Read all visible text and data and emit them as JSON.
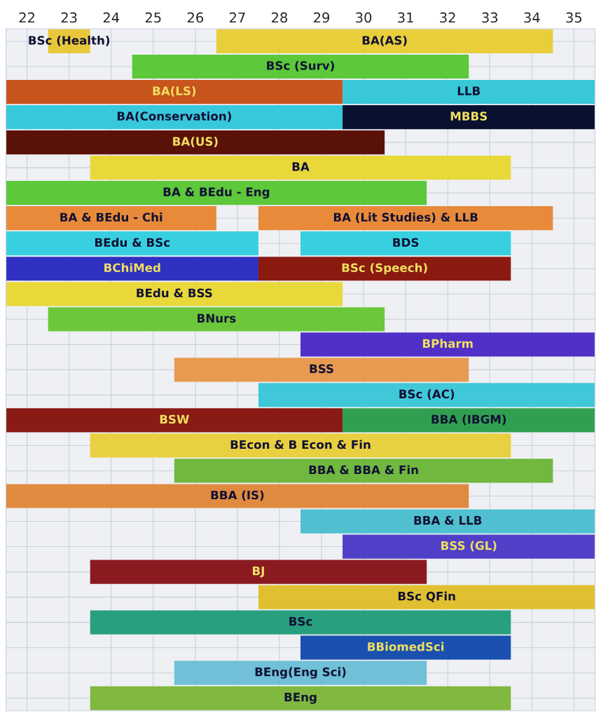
{
  "chart_data": {
    "type": "bar",
    "orientation": "horizontal",
    "xlim": [
      21.5,
      35.5
    ],
    "xticks": [
      22,
      23,
      24,
      25,
      26,
      27,
      28,
      29,
      30,
      31,
      32,
      33,
      34,
      35
    ],
    "grid": true,
    "tick_labels": "x",
    "categories": [
      null,
      null,
      null,
      null,
      null,
      null,
      null,
      null,
      null,
      null,
      null,
      null,
      null,
      null,
      null,
      null,
      null,
      null,
      null,
      null,
      null,
      null,
      null,
      null,
      null,
      null,
      null
    ],
    "series": [
      {
        "base": [
          22.5,
          24.5,
          21.5,
          21.5,
          21.5,
          23.5,
          21.5,
          21.5,
          21.5,
          21.5,
          21.5,
          22.5,
          28.5,
          25.5,
          27.5,
          21.5,
          23.5,
          25.5,
          21.5,
          28.5,
          29.5,
          23.5,
          27.5,
          23.5,
          28.5,
          25.5,
          23.5
        ],
        "values": [
          1,
          8,
          8,
          8,
          9,
          10,
          10,
          5,
          6,
          6,
          8,
          8,
          7,
          7,
          8,
          8,
          10,
          9,
          11,
          7,
          6,
          8,
          8,
          10,
          5,
          6,
          10
        ],
        "colors": [
          "#e8c83a",
          "#5cc83a",
          "#c8541e",
          "#38c8dc",
          "#5a1208",
          "#e8d83a",
          "#5cc83a",
          "#e88a3a",
          "#38d0e0",
          "#3030c0",
          "#e8d83a",
          "#6cc83a",
          "#5030c8",
          "#e89a50",
          "#40c8d8",
          "#8a1a14",
          "#e8d040",
          "#70b840",
          "#e08a40",
          "#50c0d0",
          "#5040c8",
          "#8a1a20",
          "#e0c030",
          "#28a080",
          "#1a50b0",
          "#70c0d8",
          "#80b840"
        ],
        "value_labels": [
          "BSc (Health)",
          "BSc (Surv)",
          "BA(LS)",
          "BA(Conservation)",
          "BA(US)",
          "BA",
          "BA & BEdu - Eng",
          "BA & BEdu - Chi",
          "BEdu & BSc",
          "BChiMed",
          "BEdu & BSS",
          "BNurs",
          "BPharm",
          "BSS",
          "BSc (AC)",
          "BSW",
          "BEcon & B Econ & Fin",
          "BBA & BBA & Fin",
          "BBA (IS)",
          "BBA & LLB",
          "BSS (GL)",
          "BJ",
          "BSc QFin",
          "BSc",
          "BBiomedSci",
          "BEng(Eng Sci)",
          "BEng"
        ]
      },
      {
        "base": [
          26.5,
          null,
          29.5,
          29.5,
          null,
          null,
          null,
          27.5,
          28.5,
          27.5,
          null,
          null,
          null,
          null,
          null,
          29.5,
          null,
          null,
          null,
          null,
          null,
          null,
          null,
          null,
          null,
          null,
          null
        ],
        "values": [
          8,
          null,
          6,
          6,
          null,
          null,
          null,
          7,
          5,
          6,
          null,
          null,
          null,
          null,
          null,
          6,
          null,
          null,
          null,
          null,
          null,
          null,
          null,
          null,
          null,
          null,
          null
        ],
        "colors": [
          "#e8cf3a",
          null,
          "#38c8d8",
          "#0a1030",
          null,
          null,
          null,
          "#e88a3a",
          "#38d0e0",
          "#8a1a10",
          null,
          null,
          null,
          null,
          null,
          "#30a050",
          null,
          null,
          null,
          null,
          null,
          null,
          null,
          null,
          null,
          null,
          null
        ],
        "value_labels": [
          "BA(AS)",
          null,
          "LLB",
          "MBBS",
          null,
          null,
          null,
          "BA (Lit Studies) & LLB",
          "BDS",
          "BSc (Speech)",
          null,
          null,
          null,
          null,
          null,
          "BBA (IBGM)",
          null,
          null,
          null,
          null,
          null,
          null,
          null,
          null,
          null,
          null,
          null
        ]
      }
    ]
  }
}
